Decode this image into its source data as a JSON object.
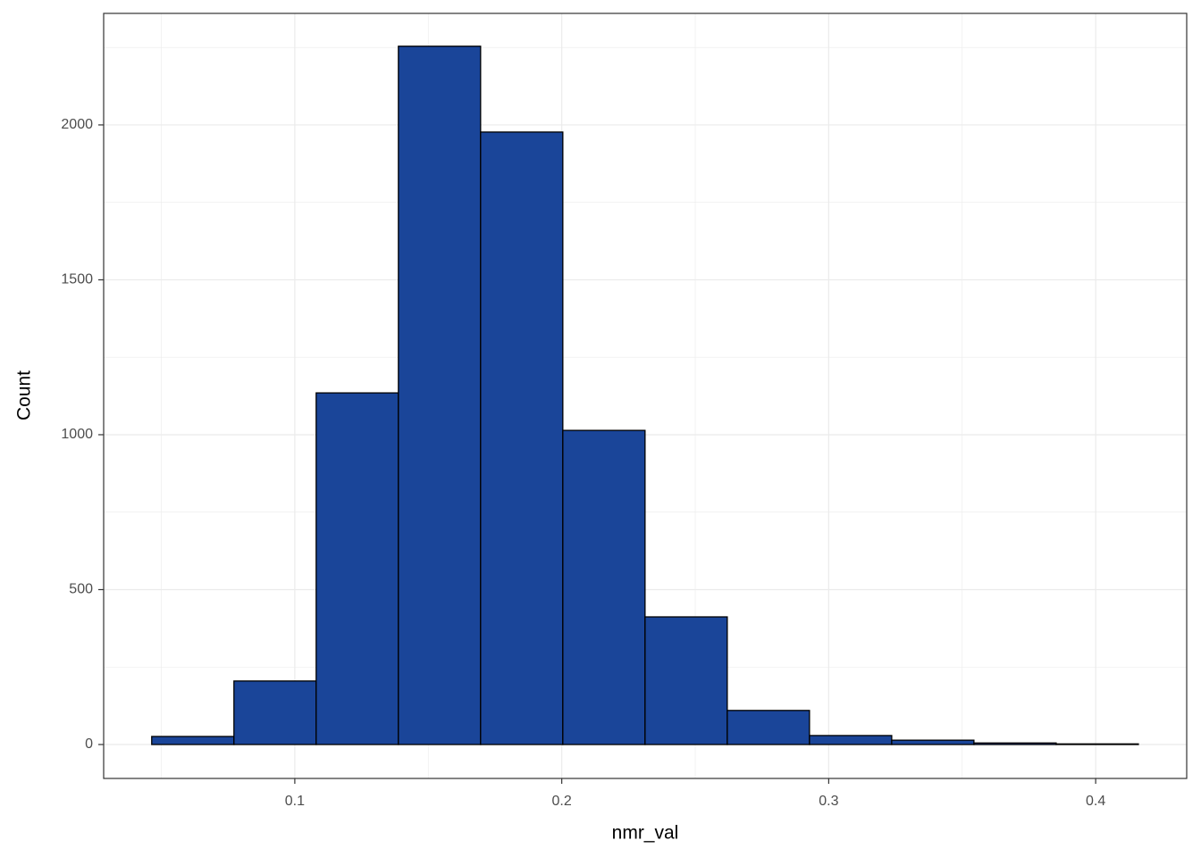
{
  "chart_data": {
    "type": "histogram",
    "x_label": "nmr_val",
    "y_label": "Count",
    "bins": [
      0.0464,
      0.0772,
      0.108,
      0.1388,
      0.1696,
      0.2004,
      0.2312,
      0.262,
      0.2928,
      0.3236,
      0.3544,
      0.3852,
      0.416
    ],
    "counts": [
      26,
      205,
      1135,
      2254,
      1977,
      1014,
      412,
      110,
      29,
      14,
      5,
      2
    ],
    "color": "#1a4599",
    "edge_color": "#000000",
    "xlim": [
      0.0284,
      0.4341
    ],
    "ylim": [
      -109.5,
      2360
    ],
    "xticks": [
      0.1,
      0.2,
      0.3,
      0.4
    ],
    "yticks": [
      0,
      500,
      1000,
      1500,
      2000
    ],
    "x_minor_grid": [
      0.05,
      0.15,
      0.25,
      0.35
    ],
    "y_minor_grid": [
      250,
      750,
      1250,
      1750,
      2250
    ],
    "grid": true
  }
}
